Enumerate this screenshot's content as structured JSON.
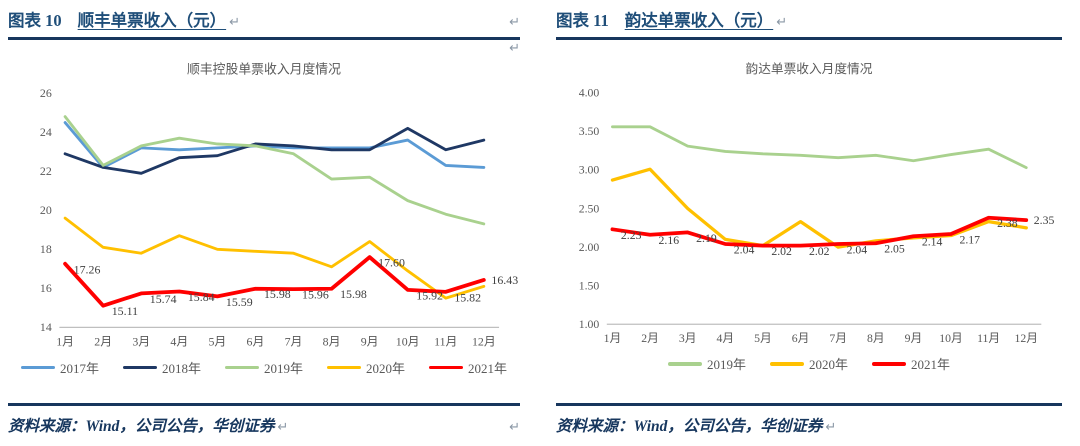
{
  "panels": [
    {
      "figure_label": "图表 10",
      "figure_title": "顺丰单票收入（元）",
      "pilcrow": "↵",
      "header_pilcrow_right": "↵",
      "after_rule_pilcrow": "↵",
      "source_note": "资料来源：Wind，公司公告，华创证券",
      "source_pilcrow": "↵",
      "source_pilcrow_right": "↵"
    },
    {
      "figure_label": "图表 11",
      "figure_title": "韵达单票收入（元）",
      "pilcrow": "↵",
      "header_pilcrow_right": "",
      "after_rule_pilcrow": "",
      "source_note": "资料来源：Wind，公司公告，华创证券",
      "source_pilcrow": "↵",
      "source_pilcrow_right": ""
    }
  ],
  "colors": {
    "rule_blue": "#17365D",
    "header_text_blue": "#1F4E79",
    "footer_text_blue": "#17375E",
    "axis_gray": "#BFBFBF",
    "label_gray": "#595959"
  },
  "chart_data": [
    {
      "type": "line",
      "title": "顺丰控股单票收入月度情况",
      "categories": [
        "1月",
        "2月",
        "3月",
        "4月",
        "5月",
        "6月",
        "7月",
        "8月",
        "9月",
        "10月",
        "11月",
        "12月"
      ],
      "ylim": [
        14,
        26
      ],
      "ytick_values": [
        26,
        24,
        22,
        20,
        18,
        16,
        14
      ],
      "ytick_labels": [
        "26",
        "24",
        "22",
        "20",
        "18",
        "16",
        "14"
      ],
      "grid": false,
      "legend_position": "bottom",
      "series": [
        {
          "name": "2017年",
          "color": "#5B9BD5",
          "width": 3,
          "values": [
            24.5,
            22.2,
            23.2,
            23.1,
            23.2,
            23.3,
            23.2,
            23.2,
            23.2,
            23.6,
            22.3,
            22.2
          ]
        },
        {
          "name": "2018年",
          "color": "#1F3864",
          "width": 3,
          "values": [
            22.9,
            22.2,
            21.9,
            22.7,
            22.8,
            23.4,
            23.3,
            23.1,
            23.1,
            24.2,
            23.1,
            23.6
          ]
        },
        {
          "name": "2019年",
          "color": "#A9D18E",
          "width": 3,
          "values": [
            24.8,
            22.3,
            23.3,
            23.7,
            23.4,
            23.3,
            22.9,
            21.6,
            21.7,
            20.5,
            19.8,
            19.3
          ]
        },
        {
          "name": "2020年",
          "color": "#FFC000",
          "width": 3,
          "values": [
            19.6,
            18.1,
            17.8,
            18.7,
            18.0,
            17.9,
            17.8,
            17.1,
            18.4,
            16.9,
            15.5,
            16.1
          ]
        },
        {
          "name": "2021年",
          "color": "#FF0000",
          "width": 4,
          "values": [
            17.26,
            15.11,
            15.74,
            15.84,
            15.59,
            15.98,
            15.96,
            15.98,
            17.6,
            15.92,
            15.82,
            16.43
          ],
          "point_labels": [
            "17.26",
            "15.11",
            "15.74",
            "15.84",
            "15.59",
            "15.98",
            "15.96",
            "15.98",
            "17.60",
            "15.92",
            "15.82",
            "16.43"
          ]
        }
      ]
    },
    {
      "type": "line",
      "title": "韵达单票收入月度情况",
      "categories": [
        "1月",
        "2月",
        "3月",
        "4月",
        "5月",
        "6月",
        "7月",
        "8月",
        "9月",
        "10月",
        "11月",
        "12月"
      ],
      "ylim": [
        1.0,
        4.0
      ],
      "ytick_values": [
        4.0,
        3.5,
        3.0,
        2.5,
        2.0,
        1.5,
        1.0
      ],
      "ytick_labels": [
        "4.00",
        "3.50",
        "3.00",
        "2.50",
        "2.00",
        "1.50",
        "1.00"
      ],
      "grid": false,
      "legend_position": "bottom",
      "series": [
        {
          "name": "2019年",
          "color": "#A9D18E",
          "width": 3,
          "values": [
            3.56,
            3.56,
            3.31,
            3.24,
            3.21,
            3.19,
            3.16,
            3.19,
            3.12,
            3.2,
            3.27,
            3.03
          ]
        },
        {
          "name": "2020年",
          "color": "#FFC000",
          "width": 3.5,
          "values": [
            2.87,
            3.01,
            2.5,
            2.1,
            2.02,
            2.33,
            2.0,
            2.08,
            2.12,
            2.15,
            2.33,
            2.25
          ]
        },
        {
          "name": "2021年",
          "color": "#FF0000",
          "width": 4,
          "values": [
            2.23,
            2.16,
            2.19,
            2.04,
            2.02,
            2.02,
            2.04,
            2.05,
            2.14,
            2.17,
            2.38,
            2.35
          ],
          "point_labels": [
            "2.23",
            "2.16",
            "2.19",
            "2.04",
            "2.02",
            "2.02",
            "2.04",
            "2.05",
            "2.14",
            "2.17",
            "2.38",
            "2.35"
          ]
        }
      ]
    }
  ]
}
